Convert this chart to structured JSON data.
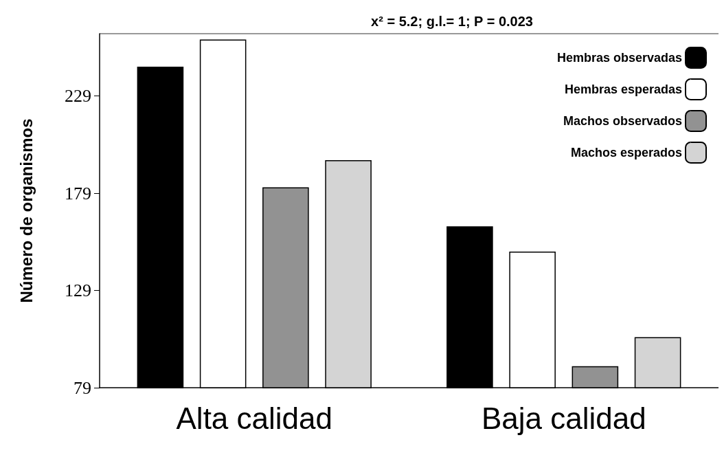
{
  "chart_data": {
    "type": "bar",
    "title": "x² = 5.2; g.l.= 1; P = 0.023",
    "ylabel": "Número de organismos",
    "categories": [
      "Alta calidad",
      "Baja calidad"
    ],
    "series": [
      {
        "name": "Hembras observadas",
        "color": "#000000",
        "values": [
          244,
          162
        ]
      },
      {
        "name": "Hembras esperadas",
        "color": "#ffffff",
        "values": [
          258,
          149
        ]
      },
      {
        "name": "Machos observados",
        "color": "#929292",
        "values": [
          182,
          90
        ]
      },
      {
        "name": "Machos esperados",
        "color": "#d4d4d4",
        "values": [
          196,
          105
        ]
      }
    ],
    "ylim": [
      79,
      261
    ],
    "yticks": [
      79,
      129,
      179,
      229
    ],
    "grid": false,
    "legend": "top right"
  }
}
